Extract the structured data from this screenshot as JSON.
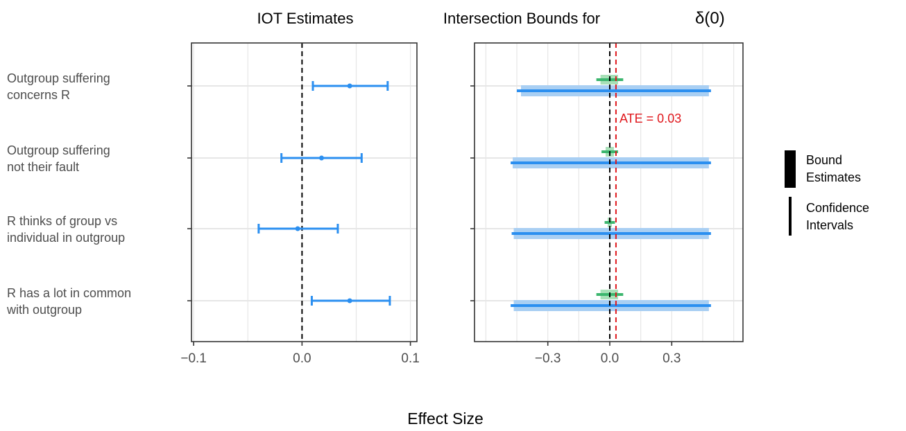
{
  "colors": {
    "iot": "#2b8ff0",
    "bound_estimate": "#a9cff3",
    "bound_ci": "#2b8ff0",
    "group_estimate": "#a8e0b8",
    "group_ci": "#3cb66e",
    "ate_line": "#e0161b",
    "zero_line": "#000000",
    "grid": "#e6e6e6",
    "label_text": "#4d4d4d"
  },
  "xlabel": "Effect Size",
  "legend": {
    "position": "right",
    "items": [
      {
        "label_line1": "Bound",
        "label_line2": "Estimates",
        "style": "thick"
      },
      {
        "label_line1": "Confidence",
        "label_line2": "Intervals",
        "style": "thin"
      }
    ]
  },
  "chart_data": [
    {
      "type": "errorbar",
      "title": "IOT Estimates",
      "categories": [
        [
          "Outgroup suffering",
          "concerns R"
        ],
        [
          "Outgroup suffering",
          "not their fault"
        ],
        [
          "R thinks of group vs",
          "individual in outgroup"
        ],
        [
          "R has a lot in common",
          "with outgroup"
        ]
      ],
      "xlim": [
        -0.102,
        0.106
      ],
      "xticks": [
        -0.1,
        0.0,
        0.1
      ],
      "xtick_labels": [
        "−0.1",
        "0.0",
        "0.1"
      ],
      "ref_line": 0,
      "grid": true,
      "series": [
        {
          "estimate": 0.044,
          "lower": 0.01,
          "upper": 0.079
        },
        {
          "estimate": 0.018,
          "lower": -0.019,
          "upper": 0.055
        },
        {
          "estimate": -0.004,
          "lower": -0.04,
          "upper": 0.033
        },
        {
          "estimate": 0.044,
          "lower": 0.009,
          "upper": 0.081
        }
      ]
    },
    {
      "type": "interval",
      "title": "Intersection Bounds for",
      "title_symbol": "δ(0)",
      "xlim": [
        -0.655,
        0.645
      ],
      "xticks": [
        -0.3,
        0.0,
        0.3
      ],
      "xtick_labels": [
        "−0.3",
        "0.0",
        "0.3"
      ],
      "ref_line": 0,
      "ate_line": 0.03,
      "ate_label": "ATE = 0.03",
      "grid": true,
      "bounds": [
        {
          "estimate": [
            -0.43,
            0.48
          ],
          "ci": [
            -0.45,
            0.49
          ]
        },
        {
          "estimate": [
            -0.47,
            0.48
          ],
          "ci": [
            -0.48,
            0.49
          ]
        },
        {
          "estimate": [
            -0.465,
            0.48
          ],
          "ci": [
            -0.475,
            0.49
          ]
        },
        {
          "estimate": [
            -0.465,
            0.48
          ],
          "ci": [
            -0.48,
            0.49
          ]
        }
      ],
      "small_intervals": [
        {
          "estimate": [
            -0.045,
            0.04
          ],
          "ci": [
            -0.065,
            0.065
          ]
        },
        {
          "estimate": [
            -0.02,
            0.02
          ],
          "ci": [
            -0.04,
            0.04
          ]
        },
        {
          "estimate": [
            -0.01,
            0.01
          ],
          "ci": [
            -0.025,
            0.025
          ]
        },
        {
          "estimate": [
            -0.045,
            0.04
          ],
          "ci": [
            -0.065,
            0.065
          ]
        }
      ]
    }
  ]
}
